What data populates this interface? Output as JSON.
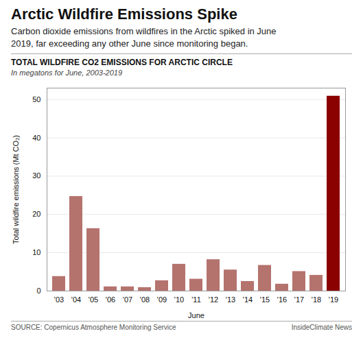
{
  "chart_data": {
    "type": "bar",
    "title": "Arctic Wildfire Emissions Spike",
    "subtitle": "Carbon dioxide emissions from wildfires in the Arctic spiked in June\n2019, far exceeding any other June since monitoring began.",
    "chart_title": "TOTAL WILDFIRE CO2 EMISSIONS FOR ARCTIC CIRCLE",
    "chart_subtitle": "In megatons for June, 2003-2019",
    "categories": [
      "'03",
      "'04",
      "'05",
      "'06",
      "'07",
      "'08",
      "'09",
      "'10",
      "'11",
      "'12",
      "'13",
      "'14",
      "'15",
      "'16",
      "'17",
      "'18",
      "'19"
    ],
    "values": [
      3.8,
      24.7,
      16.3,
      1.1,
      1.1,
      0.9,
      2.7,
      7.0,
      3.1,
      8.2,
      5.5,
      2.5,
      6.7,
      1.8,
      5.1,
      4.1,
      50.9
    ],
    "colors": [
      "#b5736e",
      "#b5736e",
      "#b5736e",
      "#b5736e",
      "#b5736e",
      "#b5736e",
      "#b5736e",
      "#b5736e",
      "#b5736e",
      "#b5736e",
      "#b5736e",
      "#b5736e",
      "#b5736e",
      "#b5736e",
      "#b5736e",
      "#b5736e",
      "#8b0000"
    ],
    "xlabel": "June",
    "ylabel": "Total wildfire emissions (Mt CO₂)",
    "ylim": [
      0,
      53
    ],
    "yticks": [
      0,
      10,
      20,
      30,
      40,
      50
    ],
    "grid": true,
    "source": "SOURCE: Copernicus Atmosphere Monitoring Service",
    "credit": "InsideClimate News"
  }
}
